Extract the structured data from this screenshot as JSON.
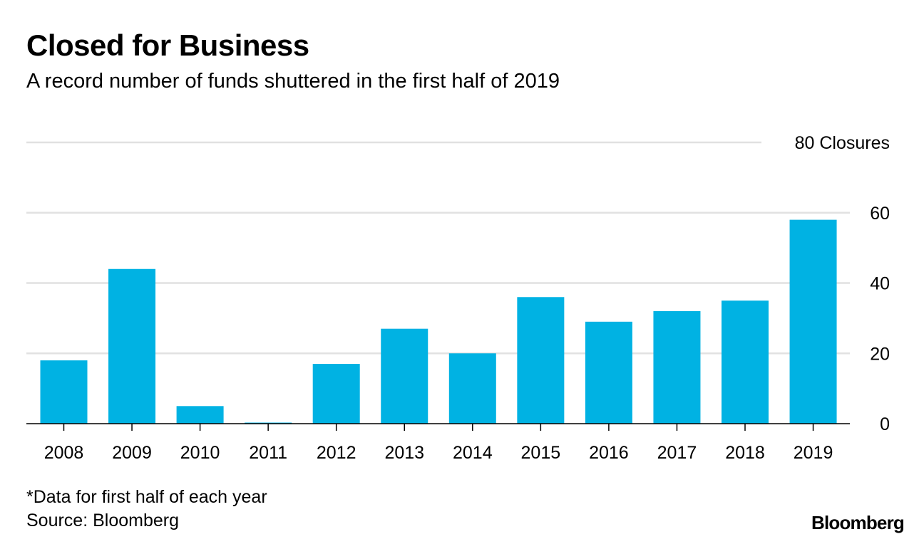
{
  "chart_data": {
    "type": "bar",
    "title": "Closed for Business",
    "subtitle": "A record number of funds shuttered in the first half of 2019",
    "categories": [
      "2008",
      "2009",
      "2010",
      "2011",
      "2012",
      "2013",
      "2014",
      "2015",
      "2016",
      "2017",
      "2018",
      "2019"
    ],
    "values": [
      18,
      44,
      5,
      0,
      17,
      27,
      20,
      36,
      29,
      32,
      35,
      58
    ],
    "ylim": [
      0,
      80
    ],
    "yticks": [
      0,
      20,
      40,
      60,
      80
    ],
    "ytick_labels": [
      "0",
      "20",
      "40",
      "60",
      "80 Closures"
    ],
    "xlabel": "",
    "ylabel": "Closures",
    "grid": true,
    "bar_color": "#00B2E3",
    "grid_color": "#E1E1E1",
    "axis_color": "#000000"
  },
  "footnote": "*Data for first half of each year",
  "source": "Source: Bloomberg",
  "logo": "Bloomberg"
}
